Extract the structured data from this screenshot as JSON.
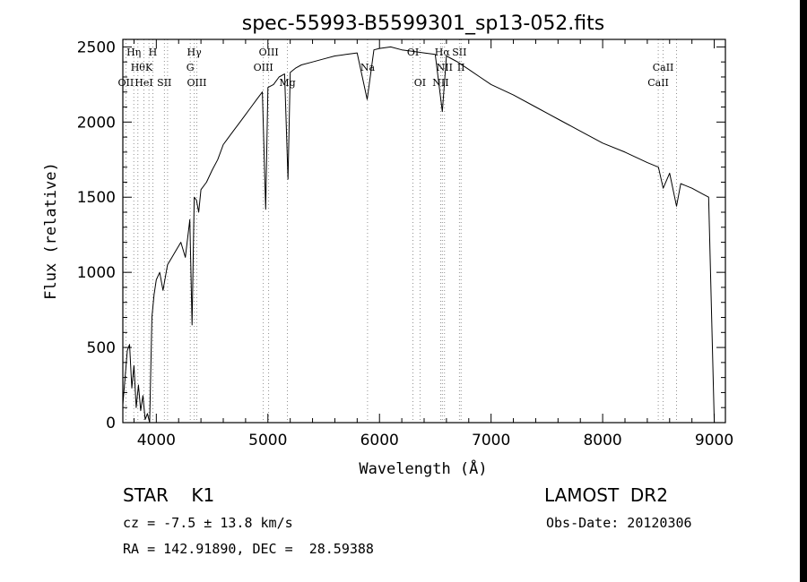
{
  "chart_data": {
    "type": "line",
    "title": "spec-55993-B5599301_sp13-052.fits",
    "xlabel": "Wavelength (Å)",
    "ylabel": "Flux (relative)",
    "xlim": [
      3700,
      9100
    ],
    "ylim": [
      0,
      2550
    ],
    "xticks": [
      4000,
      5000,
      6000,
      7000,
      8000,
      9000
    ],
    "yticks": [
      0,
      500,
      1000,
      1500,
      2000,
      2500
    ],
    "grid": false,
    "legend": "none",
    "series": [
      {
        "color": "#000000",
        "x": [
          3700,
          3720,
          3740,
          3760,
          3780,
          3800,
          3820,
          3840,
          3860,
          3880,
          3900,
          3920,
          3940,
          3960,
          3980,
          4000,
          4030,
          4060,
          4100,
          4140,
          4180,
          4220,
          4260,
          4300,
          4320,
          4340,
          4360,
          4380,
          4400,
          4450,
          4500,
          4550,
          4600,
          4650,
          4700,
          4750,
          4800,
          4850,
          4900,
          4950,
          4980,
          5000,
          5050,
          5100,
          5150,
          5180,
          5200,
          5250,
          5300,
          5400,
          5500,
          5600,
          5700,
          5800,
          5890,
          5950,
          6000,
          6100,
          6200,
          6300,
          6400,
          6500,
          6563,
          6600,
          6700,
          6800,
          6900,
          7000,
          7200,
          7400,
          7600,
          7800,
          8000,
          8200,
          8400,
          8500,
          8542,
          8600,
          8662,
          8700,
          8800,
          8900,
          8950,
          9000
        ],
        "y": [
          120,
          300,
          480,
          520,
          230,
          380,
          100,
          250,
          80,
          180,
          20,
          60,
          0,
          700,
          850,
          950,
          1000,
          880,
          1050,
          1100,
          1150,
          1200,
          1100,
          1350,
          650,
          1500,
          1480,
          1400,
          1550,
          1600,
          1680,
          1750,
          1850,
          1900,
          1950,
          2000,
          2050,
          2100,
          2150,
          2200,
          1420,
          2230,
          2250,
          2300,
          2320,
          1620,
          2330,
          2360,
          2380,
          2400,
          2420,
          2440,
          2450,
          2460,
          2150,
          2480,
          2490,
          2500,
          2480,
          2470,
          2460,
          2450,
          2070,
          2440,
          2400,
          2350,
          2300,
          2250,
          2180,
          2100,
          2020,
          1940,
          1860,
          1800,
          1730,
          1700,
          1560,
          1660,
          1440,
          1590,
          1560,
          1520,
          1500,
          0
        ]
      }
    ],
    "line_marks": [
      {
        "wl": 3727,
        "label": "OII",
        "row": 3
      },
      {
        "wl": 3798,
        "label": "Hη",
        "row": 1
      },
      {
        "wl": 3835,
        "label": "Hθ",
        "row": 2
      },
      {
        "wl": 3889,
        "label": "HeI",
        "row": 3
      },
      {
        "wl": 3934,
        "label": "K",
        "row": 2
      },
      {
        "wl": 3969,
        "label": "H",
        "row": 1
      },
      {
        "wl": 4072,
        "label": "SII",
        "row": 3
      },
      {
        "wl": 4101,
        "label": "",
        "row": 0
      },
      {
        "wl": 4304,
        "label": "G",
        "row": 2
      },
      {
        "wl": 4340,
        "label": "Hγ",
        "row": 1
      },
      {
        "wl": 4363,
        "label": "OIII",
        "row": 3
      },
      {
        "wl": 4959,
        "label": "OIII",
        "row": 2
      },
      {
        "wl": 5007,
        "label": "OIII",
        "row": 1
      },
      {
        "wl": 5175,
        "label": "Mg",
        "row": 3
      },
      {
        "wl": 5893,
        "label": "Na",
        "row": 2
      },
      {
        "wl": 6300,
        "label": "OI",
        "row": 1
      },
      {
        "wl": 6363,
        "label": "OI",
        "row": 3
      },
      {
        "wl": 6548,
        "label": "NII",
        "row": 3
      },
      {
        "wl": 6563,
        "label": "Hα",
        "row": 1
      },
      {
        "wl": 6583,
        "label": "NII",
        "row": 2
      },
      {
        "wl": 6716,
        "label": "SII",
        "row": 1
      },
      {
        "wl": 6731,
        "label": "II",
        "row": 2
      },
      {
        "wl": 8498,
        "label": "CaII",
        "row": 3
      },
      {
        "wl": 8542,
        "label": "CaII",
        "row": 2
      },
      {
        "wl": 8662,
        "label": "",
        "row": 0
      }
    ]
  },
  "info": {
    "class": "STAR    K1",
    "survey": "LAMOST  DR2",
    "cz": "cz = -7.5 ± 13.8 km/s",
    "obs_date": "Obs-Date: 20120306",
    "radec": "RA = 142.91890, DEC =  28.59388"
  }
}
